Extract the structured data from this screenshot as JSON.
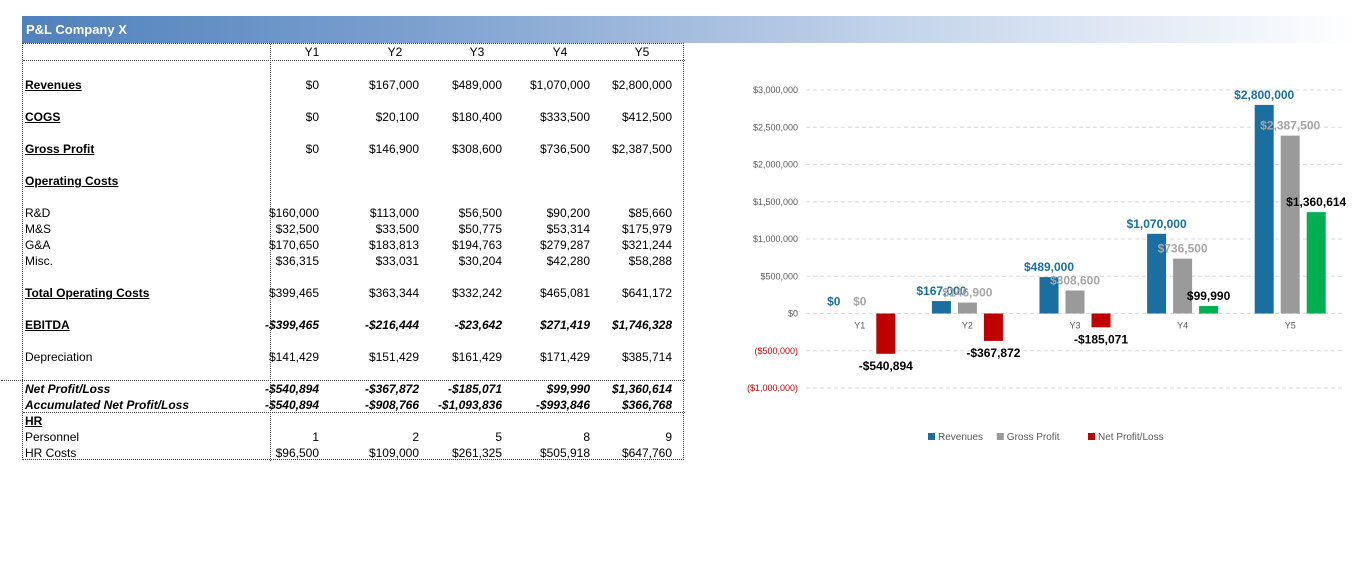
{
  "sheet": {
    "title": "P&L Company X",
    "years": [
      "Y1",
      "Y2",
      "Y3",
      "Y4",
      "Y5"
    ],
    "rows": [
      {
        "label": "Revenues",
        "values": [
          "$0",
          "$167,000",
          "$489,000",
          "$1,070,000",
          "$2,800,000"
        ]
      },
      {
        "label": "COGS",
        "values": [
          "$0",
          "$20,100",
          "$180,400",
          "$333,500",
          "$412,500"
        ]
      },
      {
        "label": "Gross Profit",
        "values": [
          "$0",
          "$146,900",
          "$308,600",
          "$736,500",
          "$2,387,500"
        ]
      },
      {
        "label": "Operating Costs",
        "values": [
          "",
          "",
          "",
          "",
          ""
        ]
      },
      {
        "label": "R&D",
        "values": [
          "$160,000",
          "$113,000",
          "$56,500",
          "$90,200",
          "$85,660"
        ]
      },
      {
        "label": "M&S",
        "values": [
          "$32,500",
          "$33,500",
          "$50,775",
          "$53,314",
          "$175,979"
        ]
      },
      {
        "label": "G&A",
        "values": [
          "$170,650",
          "$183,813",
          "$194,763",
          "$279,287",
          "$321,244"
        ]
      },
      {
        "label": "Misc.",
        "values": [
          "$36,315",
          "$33,031",
          "$30,204",
          "$42,280",
          "$58,288"
        ]
      },
      {
        "label": "Total Operating Costs",
        "values": [
          "$399,465",
          "$363,344",
          "$332,242",
          "$465,081",
          "$641,172"
        ]
      },
      {
        "label": "EBITDA",
        "values": [
          "-$399,465",
          "-$216,444",
          "-$23,642",
          "$271,419",
          "$1,746,328"
        ]
      },
      {
        "label": "Depreciation",
        "values": [
          "$141,429",
          "$151,429",
          "$161,429",
          "$171,429",
          "$385,714"
        ]
      },
      {
        "label": "Net Profit/Loss",
        "values": [
          "-$540,894",
          "-$367,872",
          "-$185,071",
          "$99,990",
          "$1,360,614"
        ]
      },
      {
        "label": "Accumulated Net Profit/Loss",
        "values": [
          "-$540,894",
          "-$908,766",
          "-$1,093,836",
          "-$993,846",
          "$366,768"
        ]
      },
      {
        "label": "HR",
        "values": [
          "",
          "",
          "",
          "",
          ""
        ]
      },
      {
        "label": "Personnel",
        "values": [
          "1",
          "2",
          "5",
          "8",
          "9"
        ]
      },
      {
        "label": "HR Costs",
        "values": [
          "$96,500",
          "$109,000",
          "$261,325",
          "$505,918",
          "$647,760"
        ]
      }
    ]
  },
  "chart_data": {
    "type": "bar",
    "categories": [
      "Y1",
      "Y2",
      "Y3",
      "Y4",
      "Y5"
    ],
    "series": [
      {
        "name": "Revenues",
        "color": "#1a6ea0",
        "label_color": "#1a6ea0",
        "values": [
          0,
          167000,
          489000,
          1070000,
          2800000
        ],
        "labels": [
          "$0",
          "$167,000",
          "$489,000",
          "$1,070,000",
          "$2,800,000"
        ]
      },
      {
        "name": "Gross Profit",
        "color": "#9a9a9a",
        "label_color": "#a6a6a6",
        "values": [
          0,
          146900,
          308600,
          736500,
          2387500
        ],
        "labels": [
          "$0",
          "$146,900",
          "$308,600",
          "$736,500",
          "$2,387,500"
        ]
      },
      {
        "name": "Net Profit/Loss",
        "color": "#c00000",
        "positive_color": "#00b050",
        "label_color": "#000000",
        "values": [
          -540894,
          -367872,
          -185071,
          99990,
          1360614
        ],
        "labels": [
          "-$540,894",
          "-$367,872",
          "-$185,071",
          "$99,990",
          "$1,360,614"
        ]
      }
    ],
    "ylim": [
      -1000000,
      3000000
    ],
    "yticks": [
      3000000,
      2500000,
      2000000,
      1500000,
      1000000,
      500000,
      0,
      -500000,
      -1000000
    ],
    "ytick_labels": [
      "$3,000,000",
      "$2,500,000",
      "$2,000,000",
      "$1,500,000",
      "$1,000,000",
      "$500,000",
      "$0",
      "($500,000)",
      "($1,000,000)"
    ],
    "negative_tick_color": "#c00000",
    "grid": true,
    "legend_position": "bottom"
  }
}
